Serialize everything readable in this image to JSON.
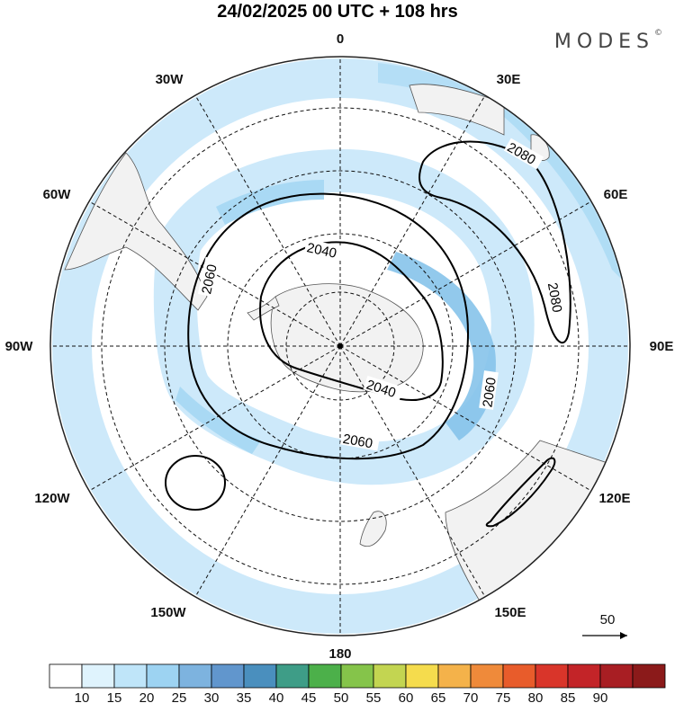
{
  "title": "24/02/2025  00 UTC  + 108 hrs",
  "brand": {
    "name": "MODES",
    "mark": "©"
  },
  "map": {
    "projection": "south-polar-stereographic",
    "longitude_labels": {
      "top": "0",
      "top_right": "30E",
      "upper_right": "60E",
      "right": "90E",
      "lower_right": "120E",
      "bottom_right": "150E",
      "bottom": "180",
      "bottom_left": "150W",
      "lower_left": "120W",
      "left": "90W",
      "upper_left": "60W",
      "top_left": "30W"
    },
    "contour_labels": {
      "a": "2080",
      "b": "2080",
      "c": "2040",
      "d": "2060",
      "e": "2040",
      "f": "2060",
      "g": "2060"
    },
    "land_color": "#f2f2f2",
    "ocean_color": "#ffffff",
    "wind_colors": [
      "#cde9fa",
      "#a9d9f4",
      "#86c3ea"
    ]
  },
  "vector_reference": {
    "value": "50"
  },
  "colorbar": {
    "ticks": [
      "10",
      "15",
      "20",
      "25",
      "30",
      "35",
      "40",
      "45",
      "50",
      "55",
      "60",
      "65",
      "70",
      "75",
      "80",
      "85",
      "90"
    ],
    "colors": [
      "#ffffff",
      "#dff3fd",
      "#bfe5f9",
      "#9dd3f2",
      "#7db3df",
      "#6196cd",
      "#4a8fbe",
      "#3e9d87",
      "#4cb04a",
      "#85c44a",
      "#c3d551",
      "#f5dc4d",
      "#f4b24a",
      "#ef8a3a",
      "#e85c2b",
      "#d9352a",
      "#c32428",
      "#a81e23",
      "#8b1a1a"
    ]
  }
}
